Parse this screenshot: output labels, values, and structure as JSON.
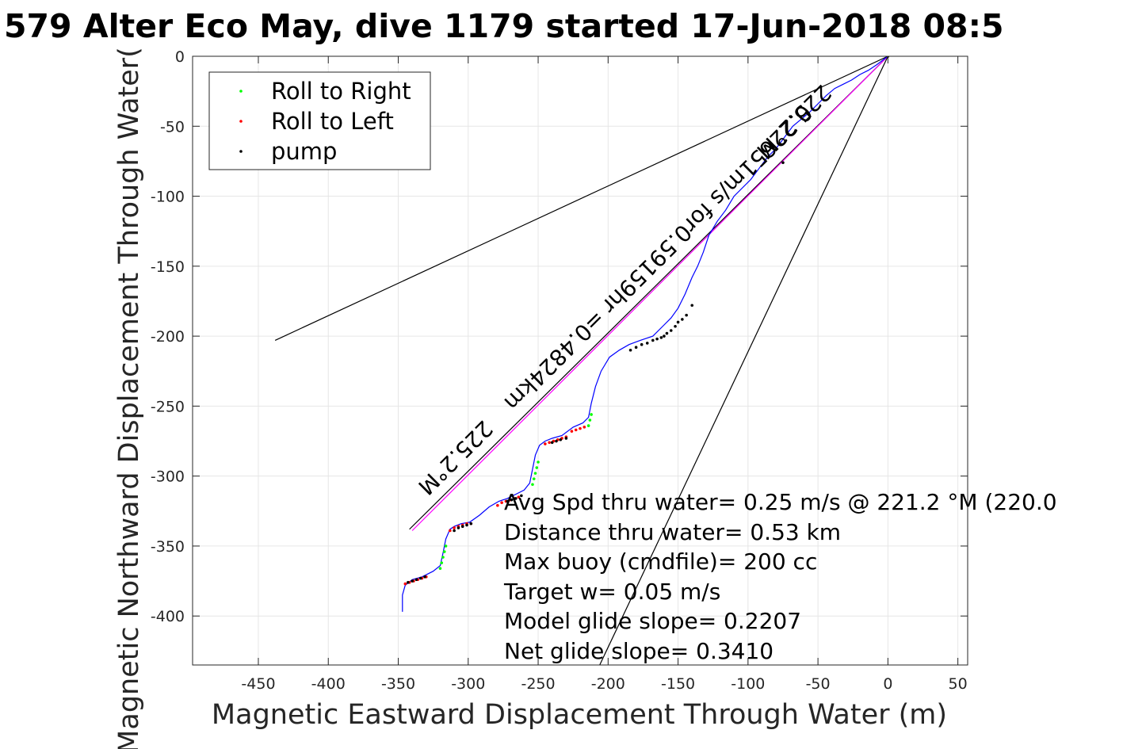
{
  "chart_data": {
    "type": "scatter",
    "title": "579 Alter Eco May, dive 1179 started 17-Jun-2018 08:5",
    "xlabel": "Magnetic Eastward Displacement Through Water (m)",
    "ylabel": "Magnetic Northward Displacement Through Water(",
    "xlim": [
      -497,
      57
    ],
    "ylim": [
      -435,
      0
    ],
    "x_ticks": [
      -450,
      -400,
      -350,
      -300,
      -250,
      -200,
      -150,
      -100,
      -50,
      0,
      50
    ],
    "y_ticks": [
      0,
      -50,
      -100,
      -150,
      -200,
      -250,
      -300,
      -350,
      -400
    ],
    "grid": true,
    "legend_position": "top-left",
    "legend": [
      {
        "label": "Roll to Right",
        "color": "#00ff00"
      },
      {
        "label": "Roll to Left",
        "color": "#ff0000"
      },
      {
        "label": "pump",
        "color": "#000000"
      }
    ],
    "track": {
      "color": "#0000ff",
      "x": [
        -347,
        -347,
        -345,
        -340,
        -333,
        -325,
        -320,
        -318,
        -316,
        -313,
        -310,
        -305,
        -299,
        -292,
        -285,
        -278,
        -272,
        -266,
        -260,
        -256,
        -254,
        -252,
        -249,
        -245,
        -240,
        -233,
        -225,
        -218,
        -214,
        -212,
        -209,
        -205,
        -199,
        -192,
        -185,
        -177,
        -168,
        -160,
        -155,
        -150,
        -145,
        -140,
        -136,
        -132,
        -128,
        -122,
        -116,
        -110,
        -104,
        -98,
        -92,
        -86,
        -80,
        -74,
        -68,
        -62,
        -56,
        -50,
        -44,
        -38,
        -32,
        -26,
        -20,
        -14,
        -8,
        -4,
        0
      ],
      "y": [
        -397,
        -385,
        -378,
        -374,
        -372,
        -368,
        -364,
        -355,
        -345,
        -338,
        -336,
        -334,
        -333,
        -328,
        -322,
        -318,
        -316,
        -313,
        -310,
        -305,
        -295,
        -285,
        -278,
        -275,
        -273,
        -271,
        -265,
        -262,
        -258,
        -248,
        -236,
        -225,
        -215,
        -210,
        -206,
        -203,
        -200,
        -192,
        -187,
        -180,
        -170,
        -158,
        -150,
        -140,
        -128,
        -118,
        -110,
        -100,
        -94,
        -88,
        -80,
        -72,
        -66,
        -58,
        -50,
        -45,
        -40,
        -34,
        -28,
        -23,
        -20,
        -17,
        -13,
        -10,
        -6,
        -3,
        0
      ]
    },
    "roll_right": {
      "x": [
        -320,
        -319,
        -318,
        -317,
        -316,
        -254,
        -253,
        -252,
        -251,
        -250,
        -214,
        -213,
        -212
      ],
      "y": [
        -366,
        -362,
        -358,
        -354,
        -350,
        -306,
        -302,
        -298,
        -294,
        -290,
        -264,
        -260,
        -256
      ]
    },
    "roll_left": {
      "x": [
        -345,
        -342,
        -339,
        -336,
        -333,
        -330,
        -313,
        -310,
        -307,
        -304,
        -301,
        -298,
        -279,
        -276,
        -273,
        -270,
        -267,
        -264,
        -245,
        -242,
        -239,
        -236,
        -233,
        -230,
        -226,
        -223,
        -220,
        -217
      ],
      "y": [
        -377,
        -376,
        -375,
        -374,
        -373,
        -372,
        -339,
        -337,
        -336,
        -335,
        -334,
        -334,
        -321,
        -319,
        -318,
        -317,
        -316,
        -315,
        -277,
        -276,
        -275,
        -274,
        -273,
        -272,
        -268,
        -267,
        -266,
        -265
      ]
    },
    "pump": {
      "x": [
        -343,
        -340,
        -337,
        -334,
        -331,
        -310,
        -307,
        -304,
        -301,
        -298,
        -272,
        -269,
        -266,
        -262,
        -240,
        -237,
        -234,
        -230,
        -184,
        -180,
        -176,
        -172,
        -168,
        -165,
        -162,
        -160,
        -158,
        -155,
        -152,
        -150,
        -147,
        -144,
        -140,
        -75,
        0
      ],
      "y": [
        -376,
        -375,
        -374,
        -373,
        -372,
        -339,
        -337,
        -336,
        -335,
        -334,
        -318,
        -317,
        -316,
        -314,
        -276,
        -275,
        -274,
        -273,
        -210,
        -208,
        -206,
        -205,
        -203,
        -202,
        -201,
        -200,
        -198,
        -196,
        -193,
        -190,
        -188,
        -185,
        -178,
        -76,
        0
      ]
    },
    "lines": [
      {
        "name": "",
        "color": "#000000",
        "x": [
          0,
          -438
        ],
        "y": [
          0,
          -203
        ]
      },
      {
        "name": "",
        "color": "#000000",
        "x": [
          0,
          -206
        ],
        "y": [
          0,
          -435
        ]
      },
      {
        "name": "",
        "color": "#000000",
        "x": [
          0,
          -342
        ],
        "y": [
          0,
          -338
        ]
      },
      {
        "name": "",
        "color": "#ff00ff",
        "x": [
          0,
          -340
        ],
        "y": [
          0,
          -339
        ]
      }
    ],
    "rotated_labels": [
      {
        "text": "225.2°M",
        "x": -313,
        "y": -283,
        "angle": 135.2
      },
      {
        "text": "0.22651m/s for0.59159hr =0.4824km",
        "x": -168,
        "y": -140,
        "angle": 135.2
      },
      {
        "text": "225.2°M",
        "x": -71,
        "y": -43,
        "angle": 135.2
      }
    ],
    "annotations": [
      "Avg Spd thru water=  0.25 m/s @ 221.2 °M (220.0",
      "Distance thru water=  0.53 km",
      "Max buoy (cmdfile)= 200 cc",
      "Target w= 0.05 m/s",
      "Model glide slope= 0.2207",
      "Net glide slope= 0.3410"
    ]
  }
}
